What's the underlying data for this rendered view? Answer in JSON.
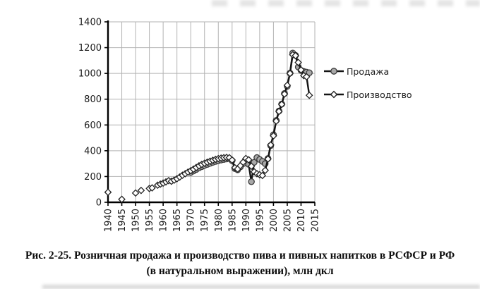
{
  "figure": {
    "caption_line1": "Рис. 2-25. Розничная продажа и производство пива и пивных напитков в РСФСР и РФ",
    "caption_line2": "(в натуральном выражении), млн дкл"
  },
  "legend": {
    "items": [
      {
        "label": "Продажа",
        "marker": "circle-gray-icon"
      },
      {
        "label": "Производство",
        "marker": "diamond-white-icon"
      }
    ]
  },
  "colors": {
    "background": "#ffffff",
    "grid": "#b3b3b3",
    "axis": "#000000",
    "tick_text": "#1a1a1a",
    "series_line": "#141414",
    "sales_marker_fill": "#a8a8a8",
    "production_marker_fill": "#ffffff"
  },
  "chart_data": {
    "type": "line",
    "title": "",
    "xlabel": "",
    "ylabel": "",
    "unit": "млн дкл",
    "xlim": [
      1940,
      2015
    ],
    "ylim": [
      0,
      1400
    ],
    "x_ticks": [
      1940,
      1945,
      1950,
      1955,
      1960,
      1965,
      1970,
      1975,
      1980,
      1985,
      1990,
      1995,
      2000,
      2005,
      2010,
      2015
    ],
    "y_ticks": [
      0,
      200,
      400,
      600,
      800,
      1000,
      1200,
      1400
    ],
    "grid": true,
    "legend_position": "right",
    "series": [
      {
        "name": "Продажа",
        "marker": "circle",
        "marker_fill": "#a8a8a8",
        "marker_stroke": "#3a3a3a",
        "line_color": "#141414",
        "points": [
          [
            1970,
            232
          ],
          [
            1971,
            243
          ],
          [
            1972,
            255
          ],
          [
            1973,
            267
          ],
          [
            1974,
            277
          ],
          [
            1975,
            286
          ],
          [
            1976,
            294
          ],
          [
            1977,
            302
          ],
          [
            1978,
            310
          ],
          [
            1979,
            317
          ],
          [
            1980,
            323
          ],
          [
            1981,
            328
          ],
          [
            1982,
            332
          ],
          [
            1983,
            336
          ],
          [
            1984,
            340
          ],
          [
            1985,
            323
          ],
          [
            1986,
            262
          ],
          [
            1987,
            252
          ],
          [
            1988,
            275
          ],
          [
            1989,
            300
          ],
          [
            1990,
            330
          ],
          [
            1991,
            295
          ],
          [
            1992,
            160
          ],
          [
            1993,
            310
          ],
          [
            1994,
            347
          ],
          [
            1995,
            332
          ],
          [
            1996,
            318
          ],
          [
            1997,
            300
          ],
          [
            1998,
            340
          ],
          [
            1999,
            440
          ],
          [
            2000,
            524
          ],
          [
            2001,
            635
          ],
          [
            2002,
            708
          ],
          [
            2003,
            762
          ],
          [
            2004,
            844
          ],
          [
            2005,
            900
          ],
          [
            2006,
            1002
          ],
          [
            2007,
            1158
          ],
          [
            2008,
            1140
          ],
          [
            2009,
            1050
          ],
          [
            2010,
            1023
          ],
          [
            2011,
            1015
          ],
          [
            2012,
            1010
          ],
          [
            2013,
            1005
          ]
        ]
      },
      {
        "name": "Производство",
        "marker": "diamond",
        "marker_fill": "#ffffff",
        "marker_stroke": "#222222",
        "line_color": "#141414",
        "points": [
          [
            1940,
            78
          ],
          [
            1945,
            23
          ],
          [
            1950,
            72
          ],
          [
            1952,
            92
          ],
          [
            1955,
            107
          ],
          [
            1956,
            112
          ],
          [
            1958,
            133
          ],
          [
            1959,
            141
          ],
          [
            1960,
            149
          ],
          [
            1961,
            158
          ],
          [
            1962,
            168
          ],
          [
            1963,
            163
          ],
          [
            1964,
            172
          ],
          [
            1965,
            183
          ],
          [
            1966,
            196
          ],
          [
            1967,
            210
          ],
          [
            1968,
            222
          ],
          [
            1969,
            234
          ],
          [
            1970,
            245
          ],
          [
            1971,
            257
          ],
          [
            1972,
            270
          ],
          [
            1973,
            283
          ],
          [
            1974,
            294
          ],
          [
            1975,
            303
          ],
          [
            1976,
            311
          ],
          [
            1977,
            319
          ],
          [
            1978,
            326
          ],
          [
            1979,
            333
          ],
          [
            1980,
            339
          ],
          [
            1981,
            343
          ],
          [
            1982,
            346
          ],
          [
            1983,
            348
          ],
          [
            1984,
            346
          ],
          [
            1985,
            328
          ],
          [
            1986,
            268
          ],
          [
            1987,
            258
          ],
          [
            1988,
            284
          ],
          [
            1989,
            311
          ],
          [
            1990,
            340
          ],
          [
            1991,
            330
          ],
          [
            1992,
            280
          ],
          [
            1993,
            237
          ],
          [
            1994,
            222
          ],
          [
            1995,
            214
          ],
          [
            1996,
            208
          ],
          [
            1997,
            248
          ],
          [
            1998,
            336
          ],
          [
            1999,
            445
          ],
          [
            2000,
            516
          ],
          [
            2001,
            630
          ],
          [
            2002,
            705
          ],
          [
            2003,
            760
          ],
          [
            2004,
            840
          ],
          [
            2005,
            908
          ],
          [
            2006,
            1000
          ],
          [
            2007,
            1145
          ],
          [
            2008,
            1138
          ],
          [
            2009,
            1085
          ],
          [
            2010,
            1027
          ],
          [
            2011,
            983
          ],
          [
            2012,
            974
          ],
          [
            2013,
            830
          ]
        ]
      }
    ]
  }
}
